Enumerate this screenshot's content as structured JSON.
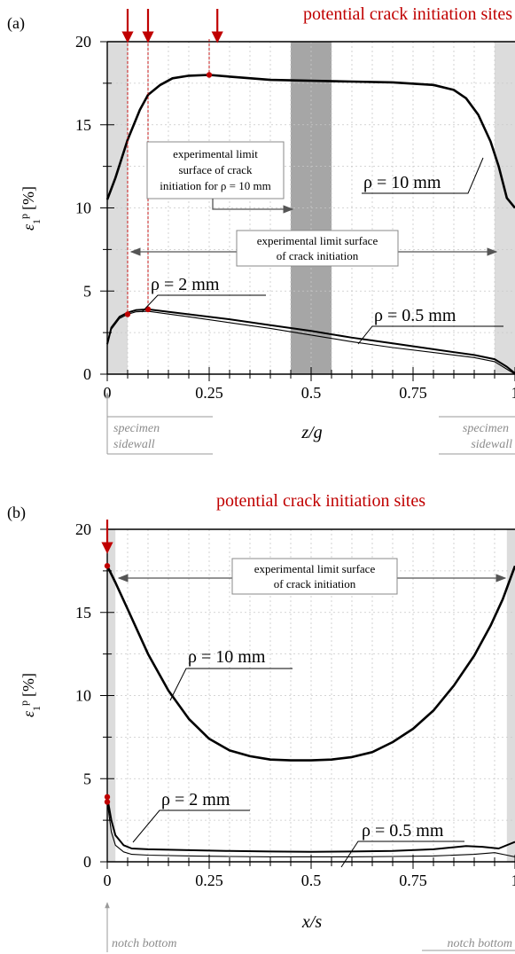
{
  "chart_data": [
    {
      "type": "line",
      "panel_label": "(a)",
      "title": "potential crack initiation sites",
      "xlabel": "z/g",
      "ylabel_main": "ε",
      "ylabel_sub": "1",
      "ylabel_sup": "p",
      "ylabel_unit": "[%]",
      "xlim": [
        0,
        1
      ],
      "ylim": [
        0,
        20
      ],
      "xtick_labels": [
        "0",
        "0.25",
        "0.5",
        "0.75",
        "1"
      ],
      "xtick_values": [
        0,
        0.25,
        0.5,
        0.75,
        1
      ],
      "ytick_labels": [
        "0",
        "5",
        "10",
        "15",
        "20"
      ],
      "ytick_values": [
        0,
        5,
        10,
        15,
        20
      ],
      "grid": true,
      "shaded_bands": [
        {
          "x0": 0,
          "x1": 0.05,
          "color": "#dcdcdc"
        },
        {
          "x0": 0.45,
          "x1": 0.55,
          "color": "#a6a6a6"
        },
        {
          "x0": 0.95,
          "x1": 1.0,
          "color": "#dcdcdc"
        }
      ],
      "series": [
        {
          "name": "ρ = 10 mm",
          "lw": 2.6,
          "x": [
            0,
            0.02,
            0.05,
            0.08,
            0.1,
            0.13,
            0.16,
            0.2,
            0.25,
            0.3,
            0.4,
            0.5,
            0.6,
            0.7,
            0.8,
            0.85,
            0.88,
            0.91,
            0.94,
            0.96,
            0.98,
            1.0
          ],
          "y": [
            10.5,
            11.8,
            14.1,
            15.9,
            16.8,
            17.4,
            17.8,
            17.95,
            18.0,
            17.9,
            17.7,
            17.65,
            17.6,
            17.55,
            17.4,
            17.1,
            16.6,
            15.6,
            14.0,
            12.5,
            10.6,
            10.0
          ]
        },
        {
          "name": "ρ = 2 mm",
          "lw": 2.0,
          "x": [
            0,
            0.01,
            0.03,
            0.05,
            0.07,
            0.1,
            0.2,
            0.3,
            0.4,
            0.5,
            0.6,
            0.7,
            0.8,
            0.9,
            0.95,
            0.98,
            1.0
          ],
          "y": [
            1.8,
            2.8,
            3.45,
            3.7,
            3.85,
            3.9,
            3.6,
            3.3,
            2.95,
            2.6,
            2.2,
            1.85,
            1.5,
            1.15,
            0.9,
            0.45,
            0.05
          ]
        },
        {
          "name": "ρ = 0.5 mm",
          "lw": 1.1,
          "x": [
            0,
            0.01,
            0.03,
            0.05,
            0.07,
            0.1,
            0.2,
            0.3,
            0.4,
            0.5,
            0.6,
            0.7,
            0.8,
            0.9,
            0.95,
            0.98,
            1.0
          ],
          "y": [
            1.8,
            2.7,
            3.35,
            3.6,
            3.75,
            3.78,
            3.45,
            3.1,
            2.75,
            2.35,
            1.95,
            1.6,
            1.3,
            1.0,
            0.75,
            0.3,
            0.0
          ]
        }
      ],
      "markers": [
        {
          "x": 0.05,
          "y": 3.6
        },
        {
          "x": 0.1,
          "y": 3.9
        },
        {
          "x": 0.25,
          "y": 18.0
        }
      ],
      "arrow_x": [
        0.05,
        0.1,
        0.27
      ],
      "annotations": {
        "box1": [
          "experimental limit",
          "surface of crack",
          "initiation for ρ = 10 mm"
        ],
        "box2": [
          "experimental limit surface",
          "of crack initiation"
        ],
        "label_10": "ρ = 10 mm",
        "label_2": "ρ = 2 mm",
        "label_05": "ρ = 0.5 mm",
        "left_note": [
          "specimen",
          "sidewall"
        ],
        "right_note": [
          "specimen",
          "sidewall"
        ]
      }
    },
    {
      "type": "line",
      "panel_label": "(b)",
      "title": "potential crack initiation sites",
      "xlabel": "x/s",
      "ylabel_main": "ε",
      "ylabel_sub": "1",
      "ylabel_sup": "p",
      "ylabel_unit": "[%]",
      "xlim": [
        0,
        1
      ],
      "ylim": [
        0,
        20
      ],
      "xtick_labels": [
        "0",
        "0.25",
        "0.5",
        "0.75",
        "1"
      ],
      "xtick_values": [
        0,
        0.25,
        0.5,
        0.75,
        1
      ],
      "ytick_labels": [
        "0",
        "5",
        "10",
        "15",
        "20"
      ],
      "ytick_values": [
        0,
        5,
        10,
        15,
        20
      ],
      "grid": true,
      "shaded_bands": [
        {
          "x0": 0,
          "x1": 0.02,
          "color": "#dcdcdc"
        },
        {
          "x0": 0.98,
          "x1": 1.0,
          "color": "#dcdcdc"
        }
      ],
      "series": [
        {
          "name": "ρ = 10 mm",
          "lw": 2.6,
          "x": [
            0,
            0.02,
            0.05,
            0.1,
            0.15,
            0.2,
            0.25,
            0.3,
            0.35,
            0.4,
            0.45,
            0.5,
            0.55,
            0.6,
            0.65,
            0.7,
            0.75,
            0.8,
            0.85,
            0.9,
            0.94,
            0.97,
            1.0
          ],
          "y": [
            17.8,
            16.8,
            15.2,
            12.5,
            10.3,
            8.6,
            7.4,
            6.7,
            6.35,
            6.15,
            6.1,
            6.1,
            6.15,
            6.3,
            6.6,
            7.2,
            8.0,
            9.1,
            10.6,
            12.4,
            14.2,
            15.8,
            17.8
          ]
        },
        {
          "name": "ρ = 2 mm",
          "lw": 2.0,
          "x": [
            0,
            0.01,
            0.02,
            0.04,
            0.06,
            0.1,
            0.2,
            0.3,
            0.4,
            0.5,
            0.6,
            0.7,
            0.8,
            0.88,
            0.92,
            0.96,
            1.0
          ],
          "y": [
            3.9,
            2.5,
            1.6,
            1.0,
            0.8,
            0.75,
            0.7,
            0.65,
            0.62,
            0.6,
            0.62,
            0.65,
            0.75,
            0.95,
            0.9,
            0.8,
            1.2
          ]
        },
        {
          "name": "ρ = 0.5 mm",
          "lw": 1.1,
          "x": [
            0,
            0.01,
            0.02,
            0.04,
            0.06,
            0.1,
            0.2,
            0.3,
            0.4,
            0.5,
            0.6,
            0.7,
            0.8,
            0.9,
            0.95,
            0.98,
            1.0
          ],
          "y": [
            3.6,
            1.8,
            1.0,
            0.6,
            0.45,
            0.4,
            0.35,
            0.32,
            0.3,
            0.3,
            0.3,
            0.32,
            0.35,
            0.45,
            0.55,
            0.4,
            0.3
          ]
        }
      ],
      "markers": [
        {
          "x": 0,
          "y": 17.8
        },
        {
          "x": 0,
          "y": 3.9
        },
        {
          "x": 0,
          "y": 3.6
        }
      ],
      "arrow_x": [
        0
      ],
      "annotations": {
        "box2": [
          "experimental limit surface",
          "of crack initiation"
        ],
        "label_10": "ρ = 10 mm",
        "label_2": "ρ = 2 mm",
        "label_05": "ρ = 0.5 mm",
        "left_note": [
          "notch bottom"
        ],
        "right_note": [
          "notch bottom"
        ]
      }
    }
  ]
}
